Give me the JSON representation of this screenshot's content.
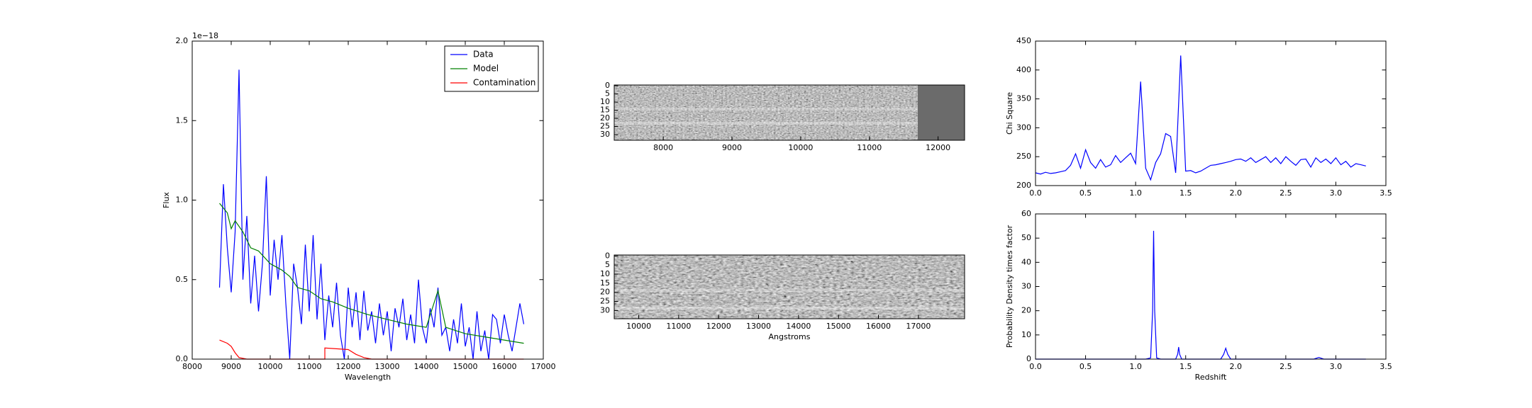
{
  "chart_data": [
    {
      "type": "line",
      "xlabel": "Wavelength",
      "ylabel": "Flux",
      "offset_label": "1e−18",
      "xlim": [
        8000,
        17000
      ],
      "ylim": [
        0,
        2.0
      ],
      "xticks": [
        8000,
        9000,
        10000,
        11000,
        12000,
        13000,
        14000,
        15000,
        16000,
        17000
      ],
      "yticks": [
        {
          "value": 0,
          "label": "0.0"
        },
        0.5,
        {
          "value": 1,
          "label": "1.0"
        },
        1.5,
        {
          "value": 2,
          "label": "2.0"
        }
      ],
      "legend": "upper right",
      "series": [
        {
          "name": "Data",
          "color": "#0000ff",
          "x": [
            8700,
            8800,
            8900,
            9000,
            9100,
            9200,
            9300,
            9400,
            9500,
            9600,
            9700,
            9800,
            9900,
            10000,
            10100,
            10200,
            10300,
            10400,
            10500,
            10600,
            10700,
            10800,
            10900,
            11000,
            11100,
            11200,
            11300,
            11400,
            11500,
            11600,
            11700,
            11800,
            11900,
            12000,
            12100,
            12200,
            12300,
            12400,
            12500,
            12600,
            12700,
            12800,
            12900,
            13000,
            13100,
            13200,
            13300,
            13400,
            13500,
            13600,
            13700,
            13800,
            13900,
            14000,
            14100,
            14200,
            14300,
            14400,
            14500,
            14600,
            14700,
            14800,
            14900,
            15000,
            15100,
            15200,
            15300,
            15400,
            15500,
            15600,
            15700,
            15800,
            15900,
            16000,
            16100,
            16200,
            16300,
            16400,
            16500
          ],
          "values": [
            0.45,
            1.1,
            0.7,
            0.42,
            0.8,
            1.82,
            0.5,
            0.9,
            0.35,
            0.65,
            0.3,
            0.6,
            1.15,
            0.4,
            0.75,
            0.5,
            0.78,
            0.35,
            0.0,
            0.6,
            0.45,
            0.22,
            0.72,
            0.3,
            0.78,
            0.25,
            0.6,
            0.12,
            0.4,
            0.2,
            0.48,
            0.15,
            0.0,
            0.45,
            0.2,
            0.42,
            0.12,
            0.43,
            0.18,
            0.3,
            0.1,
            0.35,
            0.15,
            0.3,
            0.05,
            0.32,
            0.2,
            0.38,
            0.12,
            0.28,
            0.1,
            0.5,
            0.2,
            0.1,
            0.32,
            0.2,
            0.45,
            0.15,
            0.2,
            0.05,
            0.25,
            0.1,
            0.35,
            0.08,
            0.2,
            0.0,
            0.3,
            0.05,
            0.18,
            0.0,
            0.28,
            0.25,
            0.1,
            0.28,
            0.15,
            0.05,
            0.2,
            0.35,
            0.22
          ]
        },
        {
          "name": "Model",
          "color": "#008000",
          "x": [
            8700,
            8900,
            9000,
            9100,
            9300,
            9500,
            9700,
            10000,
            10300,
            10500,
            10700,
            11000,
            11300,
            11600,
            12000,
            12500,
            13000,
            13500,
            14000,
            14300,
            14500,
            15000,
            15500,
            16000,
            16500
          ],
          "values": [
            0.98,
            0.92,
            0.82,
            0.87,
            0.8,
            0.7,
            0.68,
            0.6,
            0.56,
            0.52,
            0.45,
            0.43,
            0.38,
            0.36,
            0.32,
            0.28,
            0.25,
            0.22,
            0.2,
            0.43,
            0.2,
            0.16,
            0.14,
            0.12,
            0.1
          ]
        },
        {
          "name": "Contamination",
          "color": "#ff0000",
          "x": [
            8700,
            8900,
            9000,
            9100,
            9200,
            9400,
            11400,
            11400,
            12000,
            12200,
            12400,
            12600,
            16500
          ],
          "values": [
            0.12,
            0.1,
            0.08,
            0.04,
            0.01,
            0,
            0,
            0.07,
            0.06,
            0.03,
            0.01,
            0,
            0
          ]
        }
      ]
    },
    {
      "type": "image",
      "xlim": [
        7286,
        12386
      ],
      "ylim": [
        33.5,
        -0.5
      ],
      "xticks": [
        8000,
        9000,
        10000,
        11000,
        12000
      ],
      "yticks": [
        0,
        5,
        10,
        15,
        20,
        25,
        30
      ]
    },
    {
      "type": "image",
      "xlabel": "Angstroms",
      "xlim": [
        9386,
        18157
      ],
      "ylim": [
        34.5,
        -0.5
      ],
      "xticks": [
        10000,
        11000,
        12000,
        13000,
        14000,
        15000,
        16000,
        17000
      ],
      "yticks": [
        0,
        5,
        10,
        15,
        20,
        25,
        30
      ]
    },
    {
      "type": "line",
      "ylabel": "Chi Square",
      "xlim": [
        0,
        3.5
      ],
      "ylim": [
        200,
        450
      ],
      "xticks": [
        {
          "value": 0,
          "label": "0.0"
        },
        0.5,
        {
          "value": 1,
          "label": "1.0"
        },
        1.5,
        {
          "value": 2,
          "label": "2.0"
        },
        2.5,
        {
          "value": 3,
          "label": "3.0"
        },
        3.5
      ],
      "yticks": [
        200,
        250,
        300,
        350,
        400,
        450
      ],
      "series": [
        {
          "color": "#0000ff",
          "x": [
            0,
            0.05,
            0.1,
            0.15,
            0.2,
            0.25,
            0.3,
            0.35,
            0.4,
            0.45,
            0.5,
            0.55,
            0.6,
            0.65,
            0.7,
            0.75,
            0.8,
            0.85,
            0.9,
            0.95,
            1.0,
            1.05,
            1.1,
            1.15,
            1.2,
            1.25,
            1.3,
            1.35,
            1.4,
            1.45,
            1.5,
            1.55,
            1.6,
            1.65,
            1.7,
            1.75,
            1.8,
            1.85,
            1.9,
            1.95,
            2.0,
            2.05,
            2.1,
            2.15,
            2.2,
            2.25,
            2.3,
            2.35,
            2.4,
            2.45,
            2.5,
            2.55,
            2.6,
            2.65,
            2.7,
            2.75,
            2.8,
            2.85,
            2.9,
            2.95,
            3.0,
            3.05,
            3.1,
            3.15,
            3.2,
            3.25,
            3.3
          ],
          "values": [
            222,
            220,
            223,
            221,
            222,
            224,
            226,
            235,
            255,
            230,
            262,
            240,
            230,
            245,
            232,
            236,
            252,
            240,
            248,
            256,
            238,
            380,
            230,
            210,
            240,
            255,
            290,
            285,
            222,
            425,
            225,
            226,
            222,
            225,
            230,
            235,
            236,
            238,
            240,
            242,
            245,
            246,
            242,
            248,
            240,
            245,
            250,
            240,
            248,
            238,
            250,
            242,
            235,
            245,
            246,
            232,
            248,
            240,
            246,
            238,
            248,
            236,
            242,
            232,
            238,
            236,
            234
          ]
        }
      ]
    },
    {
      "type": "line",
      "xlabel": "Redshift",
      "ylabel": "Probability Density times factor",
      "xlim": [
        0,
        3.5
      ],
      "ylim": [
        0,
        60
      ],
      "xticks": [
        {
          "value": 0,
          "label": "0.0"
        },
        0.5,
        {
          "value": 1,
          "label": "1.0"
        },
        1.5,
        {
          "value": 2,
          "label": "2.0"
        },
        2.5,
        {
          "value": 3,
          "label": "3.0"
        },
        3.5
      ],
      "yticks": [
        0,
        10,
        20,
        30,
        40,
        50,
        60
      ],
      "series": [
        {
          "color": "#0000ff",
          "x": [
            0,
            1.1,
            1.15,
            1.17,
            1.18,
            1.19,
            1.21,
            1.25,
            1.4,
            1.42,
            1.43,
            1.44,
            1.46,
            1.85,
            1.88,
            1.9,
            1.92,
            1.95,
            2.78,
            2.83,
            2.88,
            3.3
          ],
          "values": [
            0,
            0,
            0.5,
            20,
            53,
            20,
            0.5,
            0,
            0,
            2,
            5,
            2,
            0,
            0,
            2,
            4.5,
            2,
            0,
            0,
            0.7,
            0,
            0
          ]
        }
      ]
    }
  ]
}
